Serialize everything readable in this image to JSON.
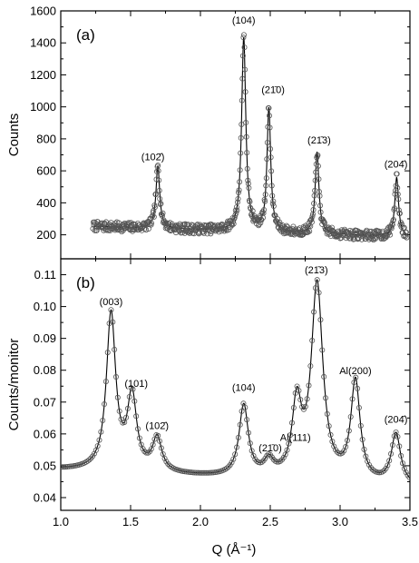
{
  "chart_data": [
    {
      "panel": "(a)",
      "type": "scatter",
      "xlabel": "Q (Å⁻¹)",
      "ylabel": "Counts",
      "xlim": [
        1.0,
        3.5
      ],
      "ylim": [
        50,
        1600
      ],
      "x_ticks": [
        "1.0",
        "1.5",
        "2.0",
        "2.5",
        "3.0",
        "3.5"
      ],
      "y_ticks": [
        {
          "value": 200,
          "label": "200"
        },
        {
          "value": 400,
          "label": "400"
        },
        {
          "value": 600,
          "label": "600"
        },
        {
          "value": 800,
          "label": "800"
        },
        {
          "value": 1000,
          "label": "1000"
        },
        {
          "value": 1200,
          "label": "1200"
        },
        {
          "value": 1400,
          "label": "1400"
        },
        {
          "value": 1600,
          "label": "1600"
        }
      ],
      "grid": false,
      "marker": "open-circle",
      "fit_line": true,
      "x_range": [
        1.23,
        3.48
      ],
      "baseline": 230,
      "baseline_slope": -30,
      "noise": 30,
      "peaks": [
        {
          "x": 1.695,
          "height": 390,
          "width": 0.016
        },
        {
          "x": 2.31,
          "height": 1210,
          "width": 0.018
        },
        {
          "x": 2.49,
          "height": 770,
          "width": 0.016
        },
        {
          "x": 2.835,
          "height": 510,
          "width": 0.016
        },
        {
          "x": 3.405,
          "height": 370,
          "width": 0.016
        }
      ],
      "annotations": [
        {
          "text": "(102̄)",
          "x": 1.66,
          "y": 665
        },
        {
          "text": "(104)",
          "x": 2.31,
          "y": 1520
        },
        {
          "text": "(21̄0)",
          "x": 2.52,
          "y": 1085
        },
        {
          "text": "(21̄3)",
          "x": 2.85,
          "y": 770
        },
        {
          "text": "(204̄)",
          "x": 3.4,
          "y": 620
        }
      ]
    },
    {
      "panel": "(b)",
      "type": "scatter",
      "xlabel": "Q (Å⁻¹)",
      "ylabel": "Counts/monitor",
      "xlim": [
        1.0,
        3.5
      ],
      "ylim": [
        0.036,
        0.115
      ],
      "x_ticks": [
        "1.0",
        "1.5",
        "2.0",
        "2.5",
        "3.0",
        "3.5"
      ],
      "y_ticks": [
        {
          "value": 0.04,
          "label": "0.04"
        },
        {
          "value": 0.05,
          "label": "0.05"
        },
        {
          "value": 0.06,
          "label": "0.06"
        },
        {
          "value": 0.07,
          "label": "0.07"
        },
        {
          "value": 0.08,
          "label": "0.08"
        },
        {
          "value": 0.09,
          "label": "0.09"
        },
        {
          "value": 0.1,
          "label": "0.10"
        },
        {
          "value": 0.11,
          "label": "0.11"
        }
      ],
      "grid": false,
      "marker": "open-circle",
      "fit_line": true,
      "x_range": [
        1.0,
        3.5
      ],
      "baseline": 0.0465,
      "baseline_slope": -0.0022,
      "noise": 0,
      "peaks": [
        {
          "x": 1.36,
          "height": 0.0492,
          "width": 0.04
        },
        {
          "x": 1.51,
          "height": 0.0232,
          "width": 0.04
        },
        {
          "x": 1.69,
          "height": 0.0105,
          "width": 0.04
        },
        {
          "x": 2.31,
          "height": 0.0225,
          "width": 0.04
        },
        {
          "x": 2.49,
          "height": 0.0048,
          "width": 0.04
        },
        {
          "x": 2.69,
          "height": 0.0225,
          "width": 0.04
        },
        {
          "x": 2.835,
          "height": 0.0612,
          "width": 0.05
        },
        {
          "x": 3.11,
          "height": 0.0312,
          "width": 0.04
        },
        {
          "x": 3.4,
          "height": 0.0159,
          "width": 0.04
        }
      ],
      "annotations": [
        {
          "text": "(003)",
          "x": 1.36,
          "y": 0.1005
        },
        {
          "text": "(101)",
          "x": 1.54,
          "y": 0.0748
        },
        {
          "text": "(102̄)",
          "x": 1.69,
          "y": 0.0615
        },
        {
          "text": "(104)",
          "x": 2.31,
          "y": 0.0735
        },
        {
          "text": "(21̄0)",
          "x": 2.5,
          "y": 0.0545
        },
        {
          "text": "Al(111)",
          "x": 2.68,
          "y": 0.0578
        },
        {
          "text": "(21̄3)",
          "x": 2.83,
          "y": 0.1105
        },
        {
          "text": "Al(200)",
          "x": 3.11,
          "y": 0.0788
        },
        {
          "text": "(204̄)",
          "x": 3.4,
          "y": 0.0635
        }
      ]
    }
  ]
}
